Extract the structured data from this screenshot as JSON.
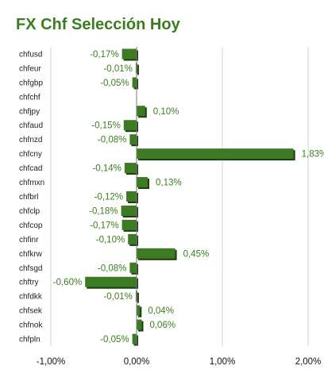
{
  "title": "FX Chf Selección Hoy",
  "colors": {
    "title": "#3a7d1e",
    "bar_front": "#3d7a24",
    "bar_shadow": "#1e3d10",
    "label": "#3a7d1e",
    "grid": "#d0d0d0"
  },
  "chart_data": {
    "type": "bar",
    "orientation": "horizontal",
    "categories": [
      "chfusd",
      "chfeur",
      "chfgbp",
      "chfchf",
      "chfjpy",
      "chfaud",
      "chfnzd",
      "chfcny",
      "chfcad",
      "chfmxn",
      "chfbrl",
      "chfclp",
      "chfcop",
      "chfinr",
      "chfkrw",
      "chfsgd",
      "chftry",
      "chfdkk",
      "chfsek",
      "chfnok",
      "chfpln"
    ],
    "values": [
      -0.17,
      -0.01,
      -0.05,
      0,
      0.1,
      -0.15,
      -0.08,
      1.83,
      -0.14,
      0.13,
      -0.12,
      -0.18,
      -0.17,
      -0.1,
      0.45,
      -0.08,
      -0.6,
      -0.01,
      0.04,
      0.06,
      -0.05
    ],
    "value_labels": [
      "-0,17%",
      "-0,01%",
      "-0,05%",
      "",
      "0,10%",
      "-0,15%",
      "-0,08%",
      "1,83%",
      "-0,14%",
      "0,13%",
      "-0,12%",
      "-0,18%",
      "-0,17%",
      "-0,10%",
      "0,45%",
      "-0,08%",
      "-0,60%",
      "-0,01%",
      "0,04%",
      "0,06%",
      "-0,05%"
    ],
    "x_ticks": [
      -1,
      0,
      1,
      2
    ],
    "x_tick_labels": [
      "-1,00%",
      "0,00%",
      "1,00%",
      "2,00%"
    ],
    "xlim": [
      -1,
      2
    ],
    "grid": "vertical"
  }
}
